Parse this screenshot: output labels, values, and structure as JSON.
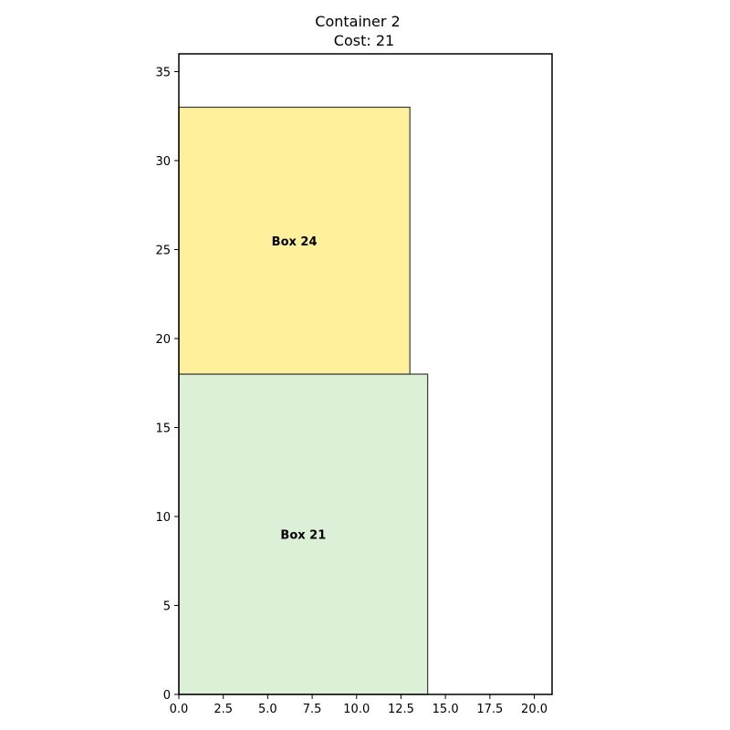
{
  "chart_data": {
    "type": "bar",
    "title": "Container 2",
    "subtitle": "Cost: 21",
    "xlabel": "",
    "ylabel": "",
    "xlim": [
      0,
      21
    ],
    "ylim": [
      0,
      36
    ],
    "x_ticks": [
      "0.0",
      "2.5",
      "5.0",
      "7.5",
      "10.0",
      "12.5",
      "15.0",
      "17.5",
      "20.0"
    ],
    "y_ticks": [
      "0",
      "5",
      "10",
      "15",
      "20",
      "25",
      "30",
      "35"
    ],
    "grid": false,
    "legend": "none",
    "boxes": [
      {
        "label": "Box 21",
        "x": 0,
        "y": 0,
        "width": 14,
        "height": 18,
        "color": "#dcefd7"
      },
      {
        "label": "Box 24",
        "x": 0,
        "y": 18,
        "width": 13,
        "height": 15,
        "color": "#fff19c"
      }
    ]
  }
}
